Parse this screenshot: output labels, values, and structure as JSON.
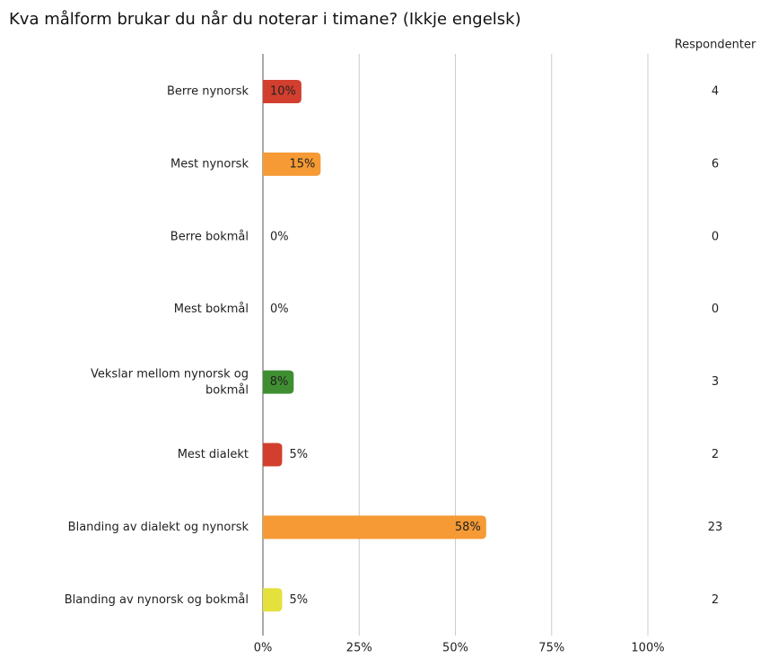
{
  "chart_data": {
    "type": "bar",
    "orientation": "horizontal",
    "title": "Kva målform brukar du når du noterar i timane? (Ikkje engelsk)",
    "categories": [
      "Berre nynorsk",
      "Mest nynorsk",
      "Berre bokmål",
      "Mest bokmål",
      "Vekslar mellom nynorsk og bokmål",
      "Mest dialekt",
      "Blanding av dialekt og nynorsk",
      "Blanding av nynorsk og bokmål"
    ],
    "values": [
      10,
      15,
      0,
      0,
      8,
      5,
      58,
      5
    ],
    "value_labels": [
      "10%",
      "15%",
      "0%",
      "0%",
      "8%",
      "5%",
      "58%",
      "5%"
    ],
    "colors": [
      "#d23f2e",
      "#f59a34",
      "#f59a34",
      "#f59a34",
      "#3f8f32",
      "#d23f2e",
      "#f59a34",
      "#e4e03c"
    ],
    "xlim": [
      0,
      100
    ],
    "xticks": [
      {
        "value": 0,
        "label": "0%"
      },
      {
        "value": 25,
        "label": "25%"
      },
      {
        "value": 50,
        "label": "50%"
      },
      {
        "value": 75,
        "label": "75%"
      },
      {
        "value": 100,
        "label": "100%"
      }
    ],
    "grid": true,
    "respondents": {
      "title": "Respondenter",
      "values": [
        4,
        6,
        0,
        0,
        3,
        2,
        23,
        2
      ]
    }
  }
}
